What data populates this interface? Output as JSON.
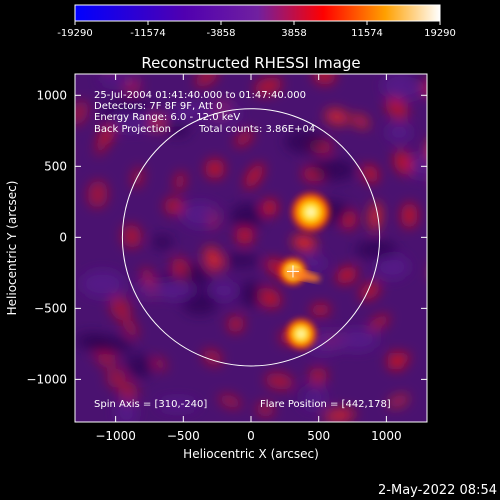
{
  "chart_data": {
    "type": "heatmap",
    "title": "Reconstructed RHESSI Image",
    "xlabel": "Heliocentric X (arcsec)",
    "ylabel": "Heliocentric Y (arcsec)",
    "xlim": [
      -1300,
      1300
    ],
    "ylim": [
      -1300,
      1150
    ],
    "xticks": [
      -1000,
      -500,
      0,
      500,
      1000
    ],
    "yticks": [
      -1000,
      -500,
      0,
      500,
      1000
    ],
    "colorbar": {
      "range": [
        -19290,
        19290
      ],
      "ticks": [
        "-19290",
        "-11574",
        "-3858",
        "3858",
        "11574",
        "19290"
      ],
      "stops": [
        "#0000ff",
        "#5000b0",
        "#7020a0",
        "#ff0000",
        "#ffa000",
        "#ffffff"
      ]
    },
    "annotations": [
      "25-Jul-2004 01:41:40.000 to 01:47:40.000",
      "Detectors: 7F 8F 9F, Att 0",
      "Energy Range: 6.0 - 12.0 keV",
      "Back Projection",
      "Total counts: 3.86E+04"
    ],
    "footer_left": "Spin Axis = [310,-240]",
    "footer_right": "Flare Position = [442,178]",
    "solar_limb_radius": 950,
    "flare_marker": [
      310,
      -240
    ],
    "sources": [
      {
        "x": 442,
        "y": 178,
        "intensity": 19290
      },
      {
        "x": 370,
        "y": -680,
        "intensity": 12000
      },
      {
        "x": 310,
        "y": -240,
        "intensity": 9000
      }
    ]
  },
  "timestamp": "2-May-2022 08:54"
}
